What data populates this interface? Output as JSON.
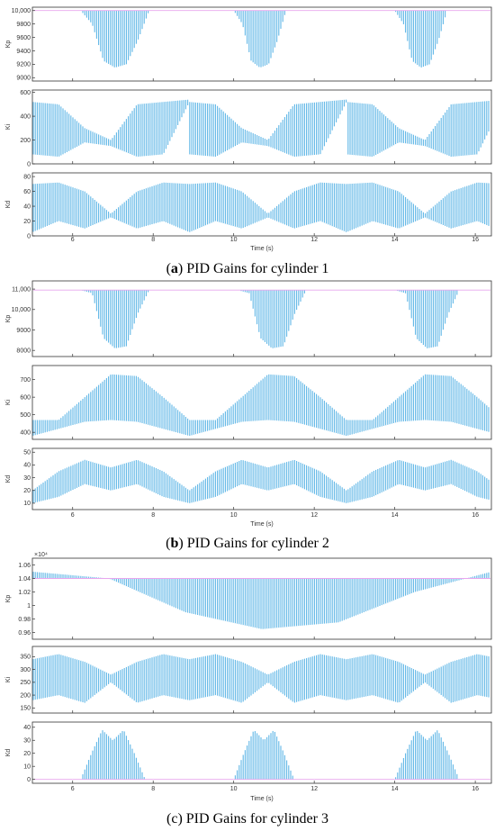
{
  "colors": {
    "signal": "#5fb6e6",
    "ref": "#e8a6ee",
    "frame": "#333333"
  },
  "chart_data": [
    {
      "type": "line",
      "caption": {
        "letter": "a",
        "text": " PID Gains for cylinder 1"
      },
      "xlabel": "Time (s)",
      "xlim": [
        5,
        16.4
      ],
      "xticks": [
        "6",
        "8",
        "10",
        "12",
        "14",
        "16"
      ],
      "panels": [
        {
          "ylabel": "Kp",
          "ylim": [
            8950,
            10050
          ],
          "yticks": [
            9000,
            9200,
            9400,
            9600,
            9800,
            10000
          ],
          "ytick_labels": [
            "9000",
            "9200",
            "9400",
            "9600",
            "9800",
            "10,000"
          ],
          "base": 10000,
          "envelope": [
            10000,
            9800,
            9250,
            9150,
            9200,
            9550,
            10000
          ],
          "mode": "band-low",
          "active_windows": [
            [
              6.2,
              7.9
            ],
            [
              10.0,
              11.3
            ],
            [
              14.0,
              15.3
            ]
          ]
        },
        {
          "ylabel": "Ki",
          "ylim": [
            0,
            620
          ],
          "yticks": [
            0,
            200,
            400,
            600
          ],
          "ytick_labels": [
            "0",
            "200",
            "400",
            "600"
          ],
          "hi": [
            520,
            500,
            300,
            200,
            500,
            520,
            540
          ],
          "lo": [
            80,
            60,
            180,
            150,
            60,
            80,
            520
          ],
          "mode": "band-cycle",
          "active_windows": [
            [
              5.0,
              16.4
            ]
          ]
        },
        {
          "ylabel": "Kd",
          "ylim": [
            0,
            85
          ],
          "yticks": [
            0,
            20,
            40,
            60,
            80
          ],
          "ytick_labels": [
            "0",
            "20",
            "40",
            "60",
            "80"
          ],
          "hi": [
            70,
            72,
            60,
            30,
            60,
            72,
            70
          ],
          "lo": [
            5,
            20,
            10,
            25,
            10,
            20,
            5
          ],
          "mode": "band-cycle",
          "active_windows": [
            [
              5.0,
              16.4
            ]
          ]
        }
      ]
    },
    {
      "type": "line",
      "caption": {
        "letter": "b",
        "text": " PID Gains for cylinder 2"
      },
      "xlabel": "Time (s)",
      "xlim": [
        5,
        16.4
      ],
      "xticks": [
        "6",
        "8",
        "10",
        "12",
        "14",
        "16"
      ],
      "panels": [
        {
          "ylabel": "Kp",
          "ylim": [
            7700,
            11400
          ],
          "yticks": [
            8000,
            9000,
            10000,
            11000
          ],
          "ytick_labels": [
            "8000",
            "9000",
            "10,000",
            "11,000"
          ],
          "base": 10950,
          "envelope": [
            10950,
            10800,
            8600,
            8100,
            8200,
            9800,
            10950
          ],
          "mode": "band-low",
          "active_windows": [
            [
              6.2,
              7.9
            ],
            [
              10.1,
              11.8
            ],
            [
              14.0,
              15.6
            ]
          ]
        },
        {
          "ylabel": "Ki",
          "ylim": [
            360,
            780
          ],
          "yticks": [
            400,
            500,
            600,
            700
          ],
          "ytick_labels": [
            "400",
            "500",
            "600",
            "700"
          ],
          "hi": [
            470,
            470,
            600,
            730,
            720,
            600,
            470
          ],
          "lo": [
            380,
            420,
            460,
            470,
            460,
            420,
            380
          ],
          "mode": "band-cycle",
          "active_windows": [
            [
              5.0,
              16.4
            ]
          ]
        },
        {
          "ylabel": "Kd",
          "ylim": [
            5,
            53
          ],
          "yticks": [
            10,
            20,
            30,
            40,
            50
          ],
          "ytick_labels": [
            "10",
            "20",
            "30",
            "40",
            "50"
          ],
          "hi": [
            20,
            35,
            44,
            38,
            44,
            35,
            20
          ],
          "lo": [
            10,
            15,
            25,
            20,
            25,
            15,
            10
          ],
          "mode": "band-cycle",
          "active_windows": [
            [
              5.0,
              16.4
            ]
          ]
        }
      ]
    },
    {
      "type": "line",
      "caption": {
        "letter": "c",
        "text": " PID Gains for cylinder 3",
        "paren_bold": false
      },
      "xlabel": "Time (s)",
      "xlim": [
        5,
        16.4
      ],
      "xticks": [
        "6",
        "8",
        "10",
        "12",
        "14",
        "16"
      ],
      "panels": [
        {
          "ylabel": "Kp",
          "ylim": [
            0.95,
            1.07
          ],
          "yticks": [
            0.96,
            0.98,
            1,
            1.02,
            1.04,
            1.06
          ],
          "ytick_labels": [
            "0.96",
            "0.98",
            "1",
            "1.02",
            "1.04",
            "1.06"
          ],
          "exponent": "×10⁴",
          "base": 1.04,
          "envelope": [
            1.05,
            1.04,
            0.99,
            0.965,
            0.975,
            1.02,
            1.05
          ],
          "mode": "band-low",
          "active_windows": [
            [
              5.0,
              16.4
            ]
          ]
        },
        {
          "ylabel": "Ki",
          "ylim": [
            130,
            390
          ],
          "yticks": [
            150,
            200,
            250,
            300,
            350
          ],
          "ytick_labels": [
            "150",
            "200",
            "250",
            "300",
            "350"
          ],
          "hi": [
            340,
            360,
            330,
            280,
            330,
            360,
            340
          ],
          "lo": [
            180,
            200,
            170,
            250,
            170,
            200,
            180
          ],
          "mode": "band-cycle",
          "active_windows": [
            [
              5.0,
              16.4
            ]
          ]
        },
        {
          "ylabel": "Kd",
          "ylim": [
            -3,
            44
          ],
          "yticks": [
            0,
            10,
            20,
            30,
            40
          ],
          "ytick_labels": [
            "0",
            "10",
            "20",
            "30",
            "40"
          ],
          "base": 0,
          "envelope": [
            0,
            20,
            38,
            30,
            38,
            20,
            0
          ],
          "mode": "band-high",
          "active_windows": [
            [
              6.2,
              7.8
            ],
            [
              10.0,
              11.5
            ],
            [
              14.0,
              15.6
            ]
          ]
        }
      ]
    }
  ]
}
